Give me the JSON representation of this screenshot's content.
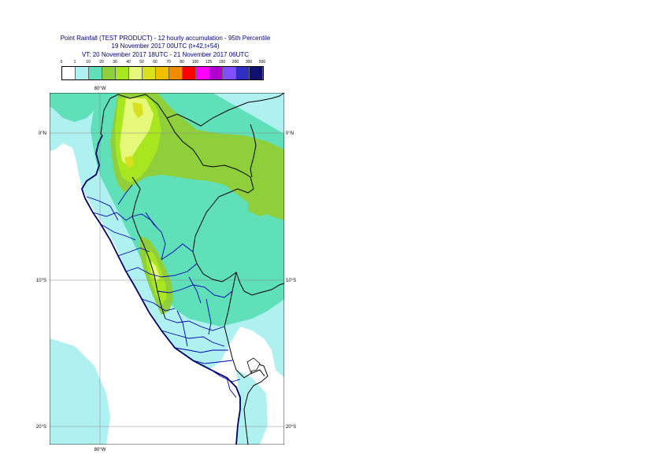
{
  "title": {
    "line1": "Point Rainfall (TEST PRODUCT) - 12 hourly accumulation - 95th Percentile",
    "line2": "19 November 2017 00UTC (t+42,t+54)",
    "line3": "VT: 20 November 2017 18UTC - 21 November 2017 06UTC"
  },
  "legend": {
    "thresholds": [
      "0",
      "1",
      "10",
      "20",
      "30",
      "40",
      "50",
      "60",
      "70",
      "80",
      "100",
      "125",
      "150",
      "200",
      "300",
      "500"
    ],
    "colors": [
      "#ffffff",
      "#aff0f0",
      "#5fe0b8",
      "#8fcf3c",
      "#a8e620",
      "#e6f87a",
      "#d9e020",
      "#f0c000",
      "#f08c00",
      "#ff0000",
      "#ff00ff",
      "#b000d0",
      "#8050ff",
      "#3030c0",
      "#101070"
    ]
  },
  "map": {
    "lon_label_top": "80°W",
    "lon_label_bottom": "80°W",
    "lat_labels": [
      "0°N",
      "10°S",
      "20°S"
    ]
  }
}
